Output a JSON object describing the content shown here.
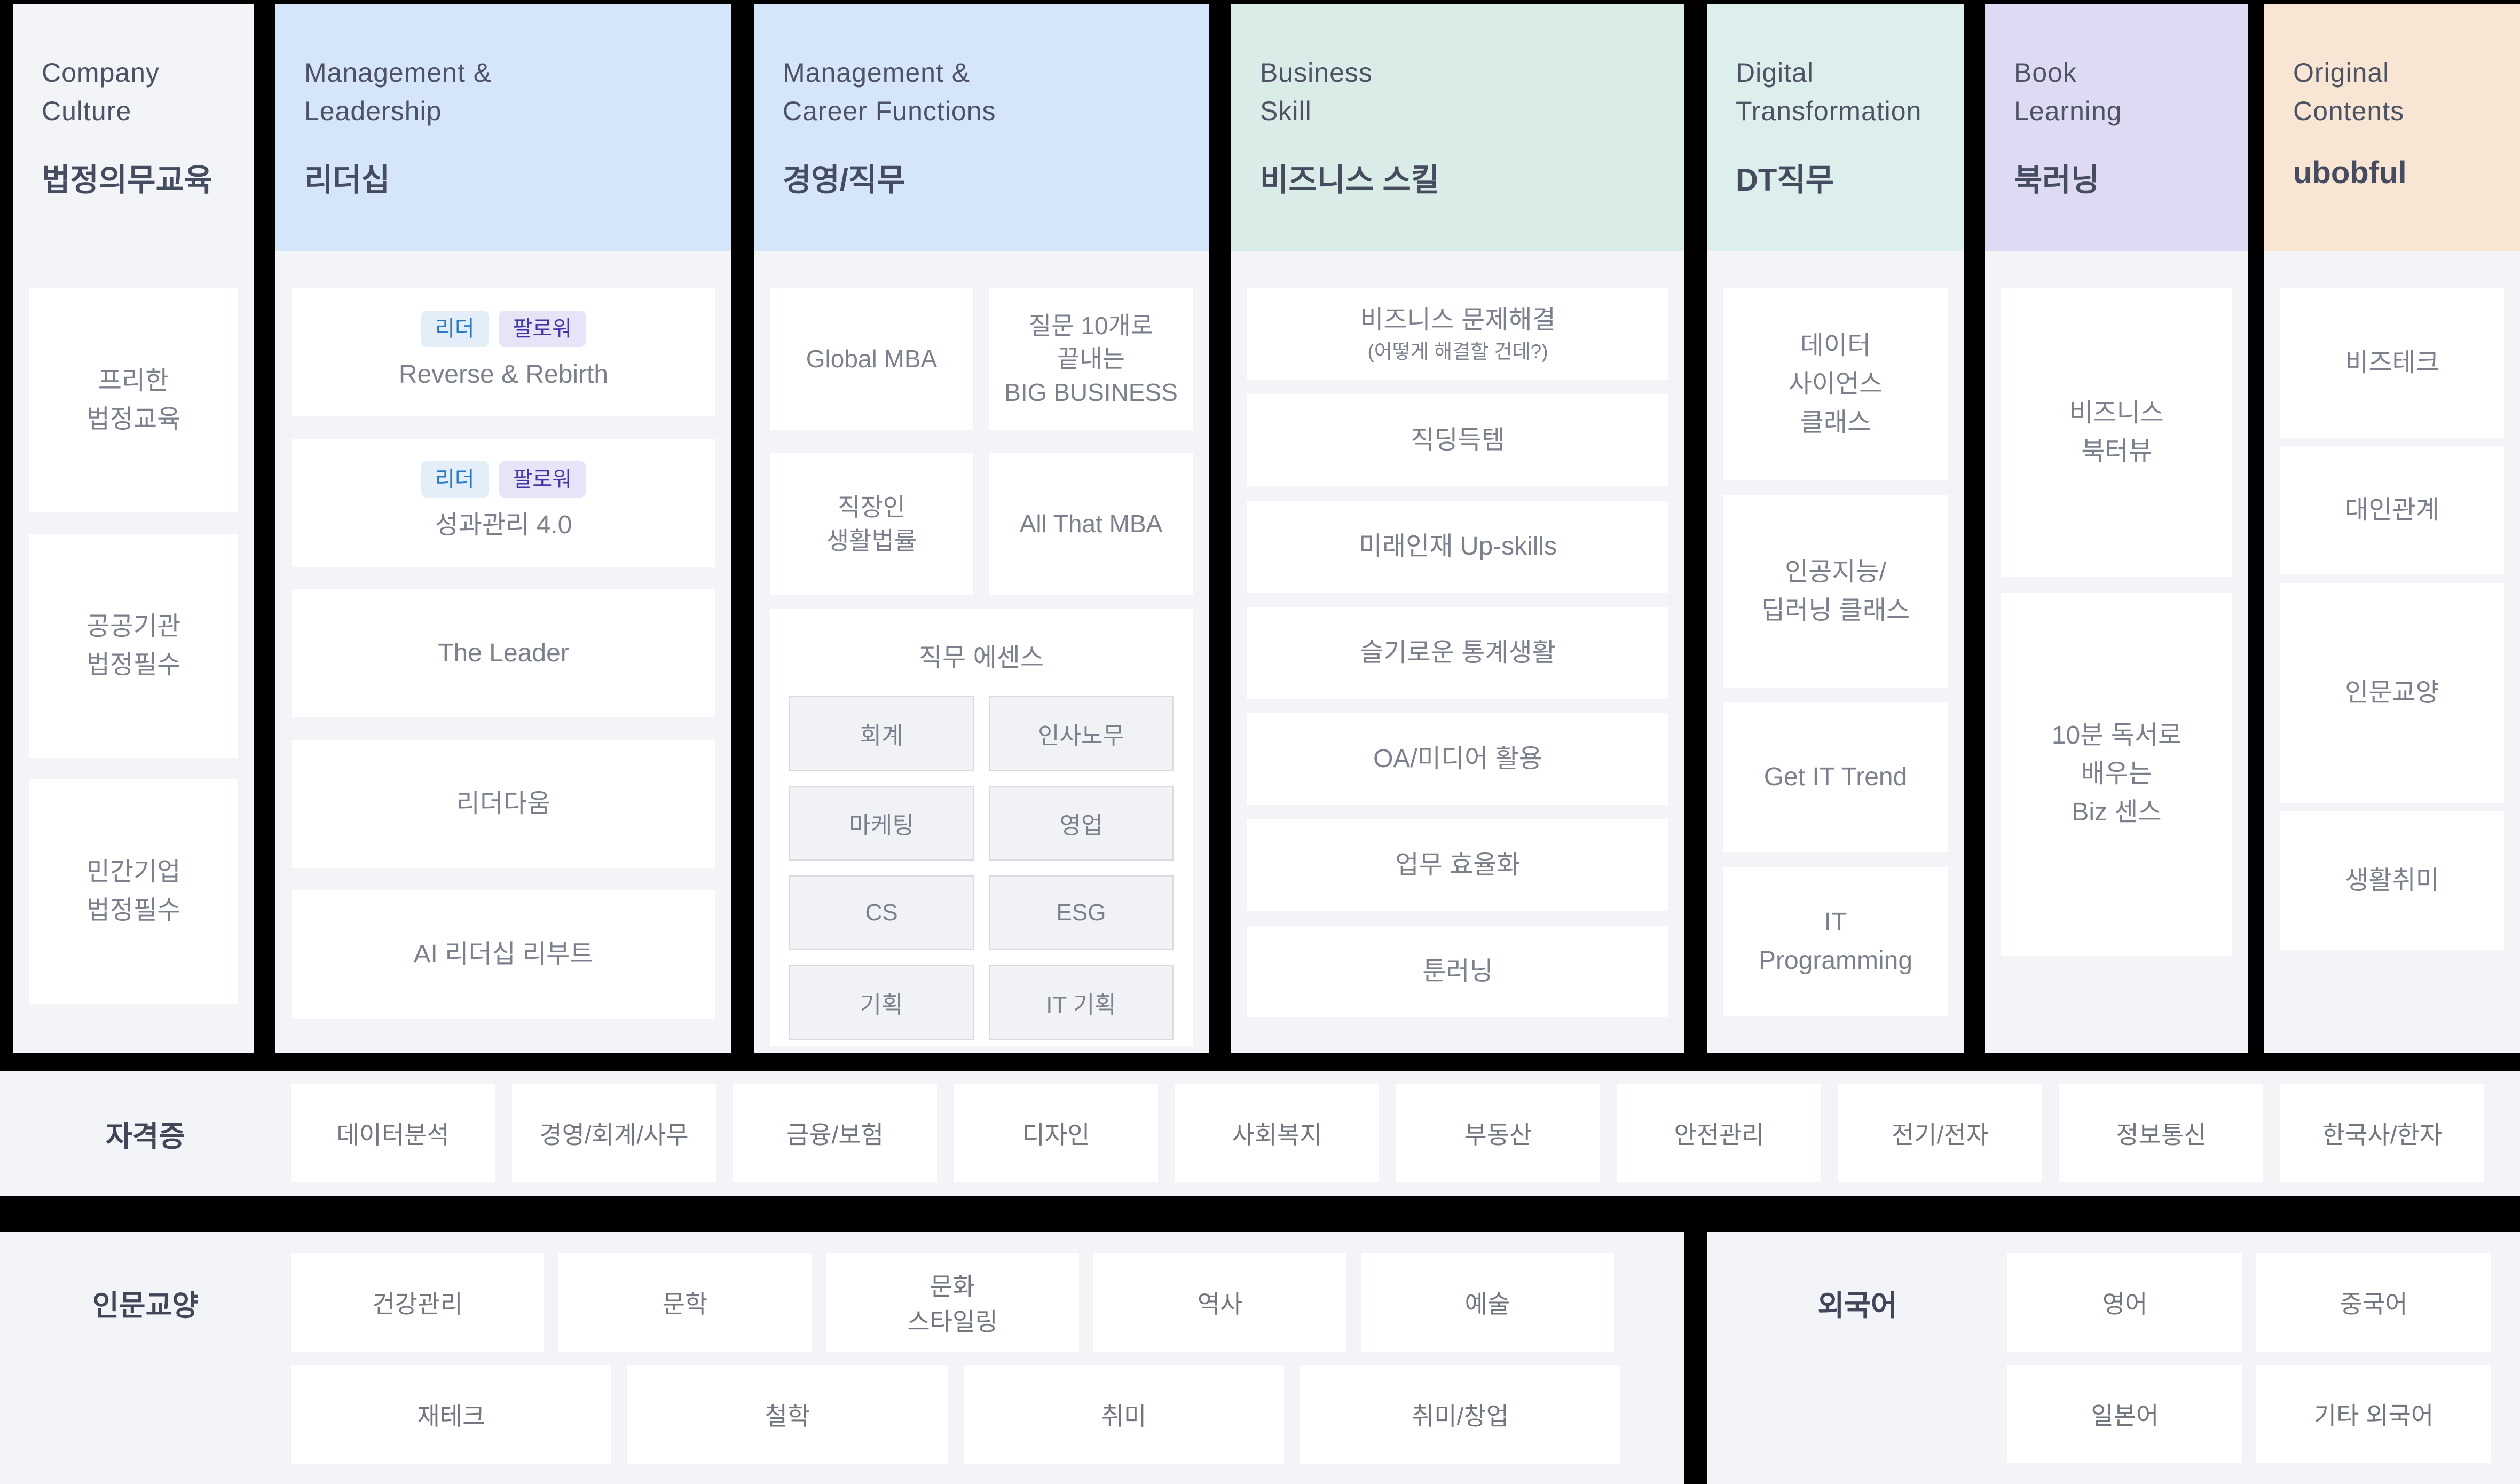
{
  "palette": {
    "background": "#000000",
    "panel_bg": "#f3f4f8",
    "card_bg": "#ffffff",
    "header_blue": "#d6e6fa",
    "header_teal": "#d9ece8",
    "header_mint": "#dcefec",
    "header_lavender": "#dedaf3",
    "header_peach": "#f9e5d3",
    "header_gray": "#f3f4f8",
    "title_text": "#4d5364",
    "card_text": "#7b808c",
    "tag_leader_bg": "#e3eef8",
    "tag_leader_text": "#2779c5",
    "tag_follower_bg": "#e7e4f7",
    "tag_follower_text": "#4237a8"
  },
  "columns": [
    {
      "slug": "company-culture",
      "title_en": "Company\nCulture",
      "title_ko": "법정의무교육",
      "items": [
        {
          "label": "프리한\n법정교육"
        },
        {
          "label": "공공기관\n법정필수"
        },
        {
          "label": "민간기업\n법정필수"
        }
      ]
    },
    {
      "slug": "management-leadership",
      "title_en": "Management &\nLeadership",
      "title_ko": "리더십",
      "items": [
        {
          "tags": [
            "리더",
            "팔로워"
          ],
          "label": "Reverse & Rebirth"
        },
        {
          "tags": [
            "리더",
            "팔로워"
          ],
          "label": "성과관리 4.0"
        },
        {
          "label": "The Leader"
        },
        {
          "label": "리더다움"
        },
        {
          "label": "AI 리더십 리부트"
        }
      ]
    },
    {
      "slug": "management-career-functions",
      "title_en": "Management &\nCareer Functions",
      "title_ko": "경영/직무",
      "grid_items": [
        {
          "label": "Global MBA"
        },
        {
          "label": "질문 10개로\n끝내는\nBIG BUSINESS"
        },
        {
          "label": "직장인\n생활법률"
        },
        {
          "label": "All That MBA"
        }
      ],
      "essence": {
        "title": "직무 에센스",
        "buttons": [
          "회계",
          "인사노무",
          "마케팅",
          "영업",
          "CS",
          "ESG",
          "기획",
          "IT 기획"
        ]
      }
    },
    {
      "slug": "business-skill",
      "title_en": "Business\nSkill",
      "title_ko": "비즈니스 스킬",
      "items": [
        {
          "label": "비즈니스 문제해결",
          "sub": "(어떻게 해결할 건데?)"
        },
        {
          "label": "직딩득템"
        },
        {
          "label": "미래인재 Up-skills"
        },
        {
          "label": "슬기로운 통계생활"
        },
        {
          "label": "OA/미디어 활용"
        },
        {
          "label": "업무 효율화"
        },
        {
          "label": "툰러닝"
        }
      ]
    },
    {
      "slug": "digital-transformation",
      "title_en": "Digital\nTransformation",
      "title_ko": "DT직무",
      "items": [
        {
          "label": "데이터\n사이언스\n클래스"
        },
        {
          "label": "인공지능/\n딥러닝 클래스"
        },
        {
          "label": "Get IT Trend"
        },
        {
          "label": "IT\nProgramming"
        }
      ]
    },
    {
      "slug": "book-learning",
      "title_en": "Book\nLearning",
      "title_ko": "북러닝",
      "items": [
        {
          "label": "비즈니스\n북터뷰"
        },
        {
          "label": "10분 독서로\n배우는\nBiz 센스"
        }
      ]
    },
    {
      "slug": "original-contents",
      "title_en": "Original\nContents",
      "title_ko": "ubobful",
      "items": [
        {
          "label": "비즈테크"
        },
        {
          "label": "대인관계"
        },
        {
          "label": "인문교양"
        },
        {
          "label": "생활취미"
        }
      ]
    }
  ],
  "bands": {
    "certificate": {
      "label": "자격증",
      "chips": [
        "데이터분석",
        "경영/회계/사무",
        "금융/보험",
        "디자인",
        "사회복지",
        "부동산",
        "안전관리",
        "전기/전자",
        "정보통신",
        "한국사/한자"
      ]
    },
    "humanities": {
      "label": "인문교양",
      "row1": [
        "건강관리",
        "문학",
        "문화\n스타일링",
        "역사",
        "예술"
      ],
      "row2": [
        "재테크",
        "철학",
        "취미",
        "취미/창업"
      ]
    },
    "language": {
      "label": "외국어",
      "row1": [
        "영어",
        "중국어"
      ],
      "row2": [
        "일본어",
        "기타 외국어"
      ]
    }
  }
}
